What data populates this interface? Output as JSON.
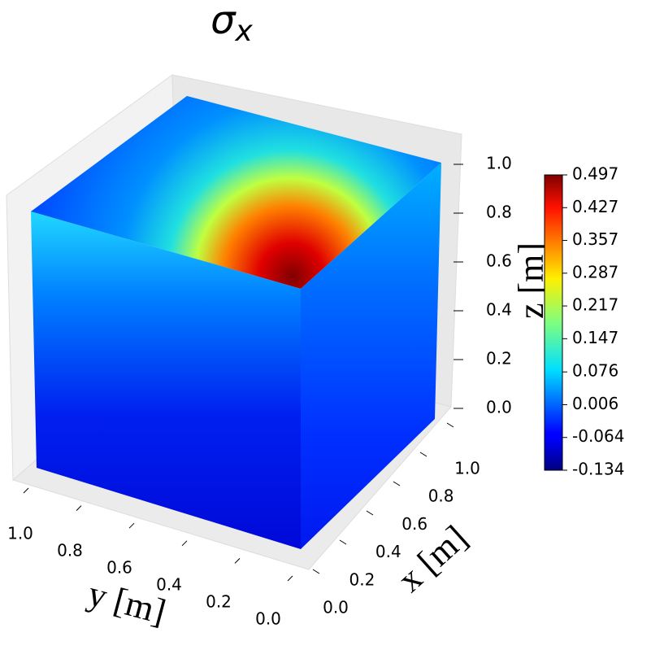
{
  "chart_data": {
    "type": "scatter3d",
    "title": {
      "symbol": "σ",
      "subscript": "x"
    },
    "xlabel": "x [m]",
    "ylabel": "y [m]",
    "zlabel": "z [m]",
    "xlim": [
      0,
      1
    ],
    "ylim": [
      0,
      1
    ],
    "zlim": [
      0,
      1
    ],
    "xticks": [
      {
        "value": 0,
        "label": "0.0"
      },
      0.2,
      0.4,
      0.6,
      0.8,
      {
        "value": 1,
        "label": "1.0"
      }
    ],
    "yticks": [
      {
        "value": 0,
        "label": "0.0"
      },
      0.2,
      0.4,
      0.6,
      0.8,
      {
        "value": 1,
        "label": "1.0"
      }
    ],
    "zticks": [
      {
        "value": 0,
        "label": "0.0"
      },
      0.2,
      0.4,
      0.6,
      0.8,
      {
        "value": 1,
        "label": "1.0"
      }
    ],
    "colormap": "jet",
    "clim": [
      -0.134,
      0.497
    ],
    "cticks": [
      -0.134,
      -0.064,
      0.006,
      0.076,
      0.147,
      0.217,
      0.287,
      0.357,
      0.427,
      0.497
    ]
  }
}
